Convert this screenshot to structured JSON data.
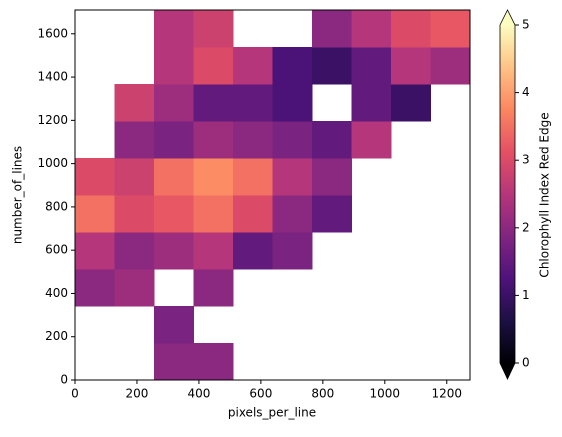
{
  "chart_data": {
    "type": "heatmap",
    "xlabel": "pixels_per_line",
    "ylabel": "number_of_lines",
    "colorbar_label": "Chlorophyll Index Red Edge",
    "x_edges": [
      0,
      127.5,
      255,
      382.5,
      510,
      637.5,
      765,
      892.5,
      1020,
      1147.5,
      1275
    ],
    "y_edges": [
      0,
      171,
      342,
      513,
      684,
      855,
      1026,
      1197,
      1368,
      1539,
      1710
    ],
    "values": [
      [
        null,
        null,
        2.0,
        2.0,
        null,
        null,
        null,
        null,
        null,
        null
      ],
      [
        null,
        null,
        1.8,
        null,
        null,
        null,
        null,
        null,
        null,
        null
      ],
      [
        2.0,
        2.2,
        null,
        2.0,
        null,
        null,
        null,
        null,
        null,
        null
      ],
      [
        2.5,
        2.0,
        2.2,
        2.5,
        1.5,
        1.8,
        null,
        null,
        null,
        null
      ],
      [
        3.5,
        3.0,
        3.2,
        3.5,
        3.0,
        2.0,
        1.5,
        null,
        null,
        null
      ],
      [
        3.0,
        2.8,
        3.5,
        3.8,
        3.5,
        2.5,
        2.0,
        null,
        null,
        null
      ],
      [
        null,
        2.0,
        1.8,
        2.2,
        2.0,
        1.8,
        1.5,
        2.5,
        null,
        null
      ],
      [
        null,
        2.8,
        2.2,
        1.5,
        1.5,
        1.2,
        null,
        1.5,
        1.0,
        null
      ],
      [
        null,
        null,
        2.5,
        3.0,
        2.5,
        1.2,
        1.0,
        1.5,
        2.5,
        2.2
      ],
      [
        null,
        null,
        2.5,
        2.8,
        null,
        null,
        2.0,
        2.5,
        3.0,
        3.2
      ]
    ],
    "xlim": [
      0,
      1275
    ],
    "ylim": [
      0,
      1710
    ],
    "xticks": [
      0,
      200,
      400,
      600,
      800,
      1000,
      1200
    ],
    "yticks": [
      0,
      200,
      400,
      600,
      800,
      1000,
      1200,
      1400,
      1600
    ],
    "clim": [
      0,
      5
    ],
    "cticks": [
      0,
      1,
      2,
      3,
      4,
      5
    ],
    "colorbar_extend": "both",
    "colormap": [
      "#000004",
      "#1c1044",
      "#4f127b",
      "#812581",
      "#b5367a",
      "#e55064",
      "#fb8761",
      "#fec287",
      "#fcfdbf"
    ]
  }
}
